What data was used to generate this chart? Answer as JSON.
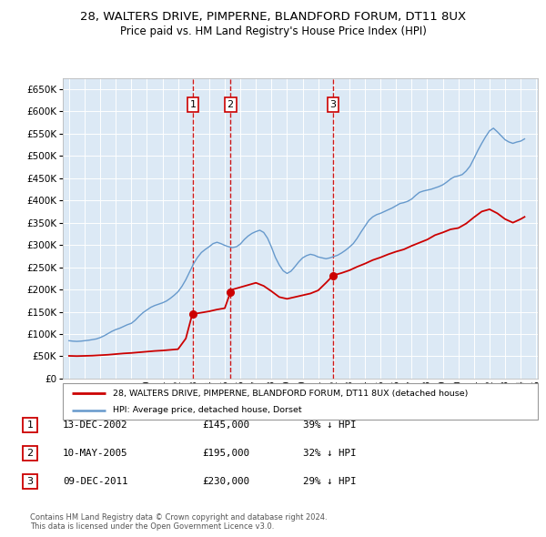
{
  "title": "28, WALTERS DRIVE, PIMPERNE, BLANDFORD FORUM, DT11 8UX",
  "subtitle": "Price paid vs. HM Land Registry's House Price Index (HPI)",
  "plot_bg_color": "#dce9f5",
  "ylim": [
    0,
    675000
  ],
  "yticks": [
    0,
    50000,
    100000,
    150000,
    200000,
    250000,
    300000,
    350000,
    400000,
    450000,
    500000,
    550000,
    600000,
    650000
  ],
  "purchases": [
    {
      "date": "2002-12-13",
      "price": 145000,
      "label": "1",
      "display_date": "13-DEC-2002",
      "display_price": "£145,000",
      "pct": "39% ↓ HPI"
    },
    {
      "date": "2005-05-10",
      "price": 195000,
      "label": "2",
      "display_date": "10-MAY-2005",
      "display_price": "£195,000",
      "pct": "32% ↓ HPI"
    },
    {
      "date": "2011-12-09",
      "price": 230000,
      "label": "3",
      "display_date": "09-DEC-2011",
      "display_price": "£230,000",
      "pct": "29% ↓ HPI"
    }
  ],
  "legend_house_label": "28, WALTERS DRIVE, PIMPERNE, BLANDFORD FORUM, DT11 8UX (detached house)",
  "legend_hpi_label": "HPI: Average price, detached house, Dorset",
  "footer": "Contains HM Land Registry data © Crown copyright and database right 2024.\nThis data is licensed under the Open Government Licence v3.0.",
  "house_color": "#cc0000",
  "hpi_color": "#6699cc",
  "hpi_data": {
    "years": [
      1995.0,
      1995.25,
      1995.5,
      1995.75,
      1996.0,
      1996.25,
      1996.5,
      1996.75,
      1997.0,
      1997.25,
      1997.5,
      1997.75,
      1998.0,
      1998.25,
      1998.5,
      1998.75,
      1999.0,
      1999.25,
      1999.5,
      1999.75,
      2000.0,
      2000.25,
      2000.5,
      2000.75,
      2001.0,
      2001.25,
      2001.5,
      2001.75,
      2002.0,
      2002.25,
      2002.5,
      2002.75,
      2003.0,
      2003.25,
      2003.5,
      2003.75,
      2004.0,
      2004.25,
      2004.5,
      2004.75,
      2005.0,
      2005.25,
      2005.5,
      2005.75,
      2006.0,
      2006.25,
      2006.5,
      2006.75,
      2007.0,
      2007.25,
      2007.5,
      2007.75,
      2008.0,
      2008.25,
      2008.5,
      2008.75,
      2009.0,
      2009.25,
      2009.5,
      2009.75,
      2010.0,
      2010.25,
      2010.5,
      2010.75,
      2011.0,
      2011.25,
      2011.5,
      2011.75,
      2012.0,
      2012.25,
      2012.5,
      2012.75,
      2013.0,
      2013.25,
      2013.5,
      2013.75,
      2014.0,
      2014.25,
      2014.5,
      2014.75,
      2015.0,
      2015.25,
      2015.5,
      2015.75,
      2016.0,
      2016.25,
      2016.5,
      2016.75,
      2017.0,
      2017.25,
      2017.5,
      2017.75,
      2018.0,
      2018.25,
      2018.5,
      2018.75,
      2019.0,
      2019.25,
      2019.5,
      2019.75,
      2020.0,
      2020.25,
      2020.5,
      2020.75,
      2021.0,
      2021.25,
      2021.5,
      2021.75,
      2022.0,
      2022.25,
      2022.5,
      2022.75,
      2023.0,
      2023.25,
      2023.5,
      2023.75,
      2024.0,
      2024.25
    ],
    "values": [
      85000,
      84000,
      83500,
      84000,
      85000,
      86000,
      87500,
      89000,
      92000,
      96000,
      101000,
      106000,
      110000,
      113000,
      117000,
      121000,
      124000,
      131000,
      140000,
      148000,
      154000,
      160000,
      164000,
      167000,
      170000,
      174000,
      180000,
      187000,
      195000,
      207000,
      222000,
      240000,
      258000,
      272000,
      283000,
      290000,
      296000,
      303000,
      306000,
      303000,
      299000,
      296000,
      294000,
      296000,
      302000,
      312000,
      320000,
      326000,
      330000,
      333000,
      328000,
      315000,
      295000,
      272000,
      255000,
      242000,
      236000,
      241000,
      251000,
      262000,
      271000,
      276000,
      279000,
      277000,
      273000,
      271000,
      269000,
      271000,
      274000,
      277000,
      282000,
      288000,
      295000,
      303000,
      315000,
      329000,
      342000,
      355000,
      363000,
      368000,
      371000,
      375000,
      379000,
      383000,
      388000,
      393000,
      395000,
      398000,
      403000,
      411000,
      418000,
      421000,
      423000,
      425000,
      428000,
      431000,
      435000,
      441000,
      448000,
      453000,
      455000,
      458000,
      466000,
      477000,
      494000,
      512000,
      528000,
      543000,
      556000,
      562000,
      554000,
      545000,
      536000,
      531000,
      528000,
      531000,
      533000,
      538000
    ]
  },
  "house_data": {
    "years": [
      1995.0,
      1995.5,
      1996.0,
      1996.5,
      1997.0,
      1997.5,
      1998.0,
      1998.5,
      1999.0,
      1999.5,
      2000.0,
      2000.5,
      2001.0,
      2001.5,
      2002.0,
      2002.5,
      2002.917,
      2003.0,
      2003.5,
      2004.0,
      2004.5,
      2005.0,
      2005.375,
      2005.5,
      2006.0,
      2006.5,
      2007.0,
      2007.5,
      2008.0,
      2008.5,
      2009.0,
      2009.5,
      2010.0,
      2010.5,
      2011.0,
      2011.5,
      2011.917,
      2012.0,
      2012.5,
      2013.0,
      2013.5,
      2014.0,
      2014.5,
      2015.0,
      2015.5,
      2016.0,
      2016.5,
      2017.0,
      2017.5,
      2018.0,
      2018.5,
      2019.0,
      2019.5,
      2020.0,
      2020.5,
      2021.0,
      2021.5,
      2022.0,
      2022.5,
      2023.0,
      2023.5,
      2024.0,
      2024.25
    ],
    "values": [
      51000,
      50500,
      51000,
      51500,
      52500,
      53500,
      55000,
      56500,
      57500,
      59000,
      60500,
      62000,
      63000,
      64500,
      66000,
      90000,
      145000,
      145000,
      148000,
      151000,
      155000,
      158000,
      195000,
      200000,
      205000,
      210000,
      215000,
      208000,
      196000,
      183000,
      179000,
      183000,
      187000,
      191000,
      198000,
      215000,
      230000,
      232000,
      237000,
      243000,
      251000,
      258000,
      266000,
      272000,
      279000,
      285000,
      290000,
      298000,
      305000,
      312000,
      322000,
      328000,
      335000,
      338000,
      348000,
      362000,
      375000,
      380000,
      371000,
      358000,
      350000,
      358000,
      363000
    ]
  }
}
